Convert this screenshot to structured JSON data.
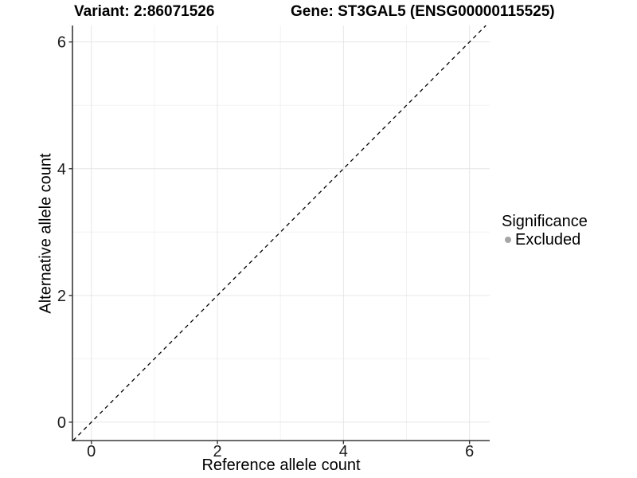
{
  "chart_data": {
    "type": "scatter",
    "titles": {
      "left": "Variant: 2:86071526",
      "right": "Gene: ST3GAL5 (ENSG00000115525)"
    },
    "xlabel": "Reference allele count",
    "ylabel": "Alternative allele count",
    "xlim": [
      -0.3,
      6.32
    ],
    "ylim": [
      -0.29,
      6.26
    ],
    "x_ticks": {
      "values": [
        0,
        2,
        4,
        6
      ],
      "labels": [
        "0",
        "2",
        "4",
        "6"
      ]
    },
    "y_ticks": {
      "values": [
        0,
        2,
        4,
        6
      ],
      "labels": [
        "0",
        "2",
        "4",
        "6"
      ]
    },
    "minor_gridlines": {
      "x": [
        1,
        3,
        5
      ],
      "y": [
        1,
        3,
        5
      ]
    },
    "grid": "major+minor",
    "points": [],
    "reference_line": {
      "type": "identity",
      "equation": "y = x",
      "style": "dashed",
      "color": "#000000"
    },
    "legend": {
      "title": "Significance",
      "position": "right",
      "items": [
        {
          "label": "Excluded",
          "marker": "circle",
          "color": "#a6a6a6"
        }
      ]
    },
    "colors": {
      "background": "#ffffff",
      "grid_major": "#e6e6e6",
      "grid_minor": "#f2f2f2",
      "axis_line": "#383838",
      "tick_label": "#1a1a1a",
      "text": "#000000"
    }
  }
}
